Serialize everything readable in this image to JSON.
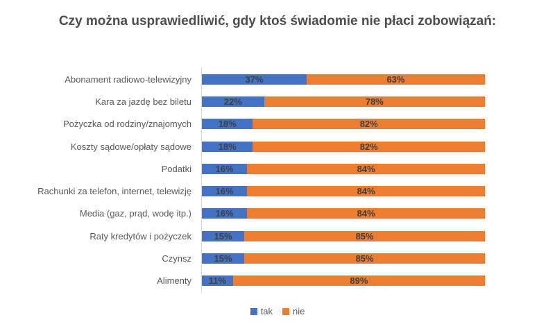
{
  "chart_data": {
    "type": "bar",
    "orientation": "horizontal-stacked",
    "title": "Czy można usprawiedliwić, gdy ktoś świadomie nie płaci zobowiązań:",
    "categories": [
      "Abonament radiowo-telewizyjny",
      "Kara za jazdę bez biletu",
      "Pożyczka od rodziny/znajomych",
      "Koszty sądowe/opłaty sądowe",
      "Podatki",
      "Rachunki za telefon, internet, telewizję",
      "Media (gaz, prąd, wodę itp.)",
      "Raty kredytów i pożyczek",
      "Czynsz",
      "Alimenty"
    ],
    "series": [
      {
        "name": "tak",
        "color": "#4472C4",
        "values": [
          37,
          22,
          18,
          18,
          16,
          16,
          16,
          15,
          15,
          11
        ]
      },
      {
        "name": "nie",
        "color": "#ED7D31",
        "values": [
          63,
          78,
          82,
          82,
          84,
          84,
          84,
          85,
          85,
          89
        ]
      }
    ],
    "value_format": "percent",
    "data_labels": true,
    "legend_position": "bottom",
    "xlim": [
      0,
      100
    ],
    "grid": false
  },
  "colors": {
    "title_text": "#4d4d4d",
    "category_text": "#595959",
    "data_label_text": "#3f3f3f",
    "axis_line": "#d9d9d9",
    "background": "#ffffff"
  }
}
